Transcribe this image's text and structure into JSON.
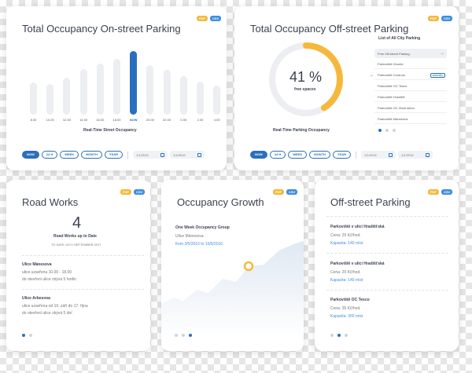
{
  "badges": {
    "pdf": "PDF",
    "csv": "CSV"
  },
  "onstreet": {
    "title": "Total Occupancy On-street Parking",
    "caption": "Real-Time Street Occupancy",
    "hours": [
      "8.00",
      "10.00",
      "12.00",
      "14.00",
      "16.00",
      "18.00",
      "NOW",
      "20.00",
      "22.00",
      "0.00",
      "2.00",
      "4.00"
    ],
    "occupancy": [
      0.5,
      0.48,
      0.58,
      0.72,
      0.8,
      0.88,
      1.0,
      0.78,
      0.7,
      0.6,
      0.52,
      0.46
    ],
    "active_index": 6,
    "buttons": [
      "NOW",
      "24 H",
      "WEEK",
      "MONTH",
      "YEAR"
    ],
    "date_from": "1/1/2016",
    "date_to": "1/1/2016"
  },
  "offstreet": {
    "title": "Total Occupancy Off-street Parking",
    "percent": "41 %",
    "percent_value": 41,
    "percent_label": "free spaces",
    "caption": "Real-Time Parking Occupancy",
    "list_title": "List of All City Parking",
    "list": [
      "Free Off-street Parking",
      "Parkoviště Dlouhá",
      "Parkoviště Centrum",
      "Parkoviště OC Tesco",
      "Parkoviště Hradiště",
      "Parkoviště OC Zlatá stuha",
      "Parkoviště Mánesova"
    ],
    "selected_tag": "statistiky",
    "buttons": [
      "NOW",
      "24 H",
      "WEEK",
      "MONTH",
      "YEAR"
    ],
    "date_from": "1/1/2016",
    "date_to": "1/1/2016"
  },
  "roadworks": {
    "title": "Road Works",
    "count": "4",
    "count_label": "Road Works up to Date",
    "date_label": "TO DATE 24TH SEPTEMBER 2017",
    "items": [
      {
        "street": "Ulice Mánesova",
        "line1": "ulice uzavřena 10.00 - 18.00",
        "line2": "do otevření ulice zbývá 5 hodin"
      },
      {
        "street": "Ulice Arbesova",
        "line1": "ulice uzavřena od 10. září do 17. října",
        "line2": "do otevření ulice zbývá 5 dní"
      }
    ]
  },
  "growth": {
    "title": "Occupancy Growth",
    "group": "One Week Occupancy Group",
    "street": "Ulice Mánesova",
    "range": "from 3/5/2016 to 10/5/2016"
  },
  "offparking": {
    "title": "Off-street Parking",
    "items": [
      {
        "name": "Parkoviště v ulici Hradišťská",
        "price": "Cena: 20 Kč/hod.",
        "capacity": "Kapacita: 140 míst"
      },
      {
        "name": "Parkoviště v ulici Hradišťská",
        "price": "Cena: 20 Kč/hod.",
        "capacity": "Kapacita: 140 míst"
      },
      {
        "name": "Parkoviště OC Tesco",
        "price": "Cena: 35 Kč/hod.",
        "capacity": "Kapacita: 350 míst"
      }
    ]
  },
  "colors": {
    "accent": "#2a6fbc",
    "orange": "#f6b83c",
    "bar": "#eceef1"
  }
}
